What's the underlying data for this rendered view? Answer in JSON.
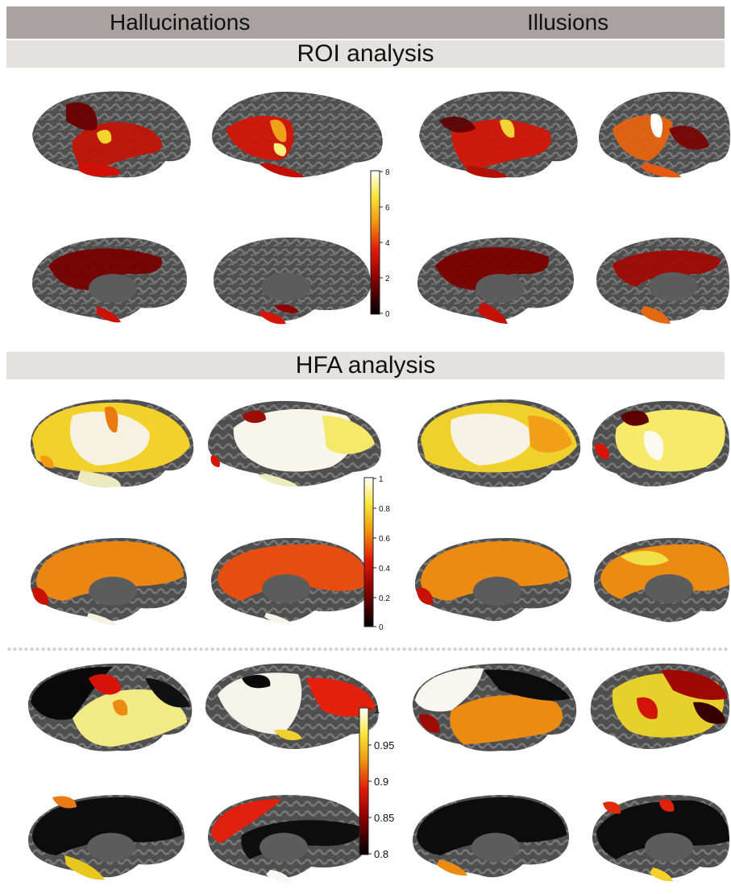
{
  "header": {
    "left_label": "Hallucinations",
    "right_label": "Illusions"
  },
  "sections": {
    "roi_title": "ROI analysis",
    "hfa_title": "HFA analysis"
  },
  "colorbars": [
    {
      "id": "roi",
      "ticks": [
        "8",
        "6",
        "4",
        "2",
        "0"
      ]
    },
    {
      "id": "hfa",
      "ticks": [
        "1",
        "0.8",
        "0.6",
        "0.4",
        "0.2",
        "0"
      ]
    },
    {
      "id": "prob",
      "ticks": [
        "1",
        "0.95",
        "0.9",
        "0.85",
        "0.8"
      ]
    }
  ],
  "palette": {
    "cortex_dark": "#4f4f4f",
    "cortex_light": "#7a7a7a",
    "hot_black": "#000000",
    "hot_darkred": "#7a0000",
    "hot_red": "#e21a0a",
    "hot_orange": "#f08a12",
    "hot_yellow": "#f7e638",
    "hot_white": "#ffffff"
  }
}
